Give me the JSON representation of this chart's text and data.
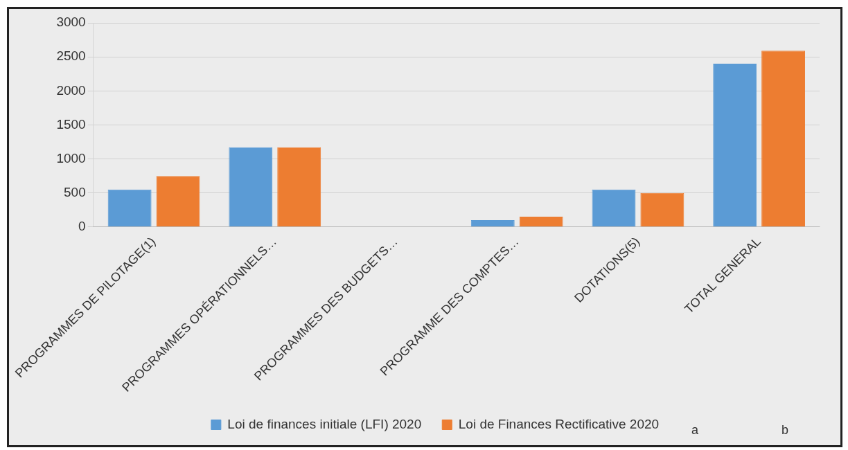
{
  "chart_data": {
    "type": "bar",
    "categories": [
      "PROGRAMMES DE PILOTAGE(1)",
      "PROGRAMMES OPÉRATIONNELS…",
      "PROGRAMMES DES BUDGETS…",
      "PROGRAMME DES COMPTES…",
      "DOTATIONS(5)",
      "TOTAL GENERAL"
    ],
    "series": [
      {
        "name": "Loi de finances initiale (LFI) 2020",
        "color": "#5b9bd5",
        "values": [
          550,
          1170,
          null,
          100,
          550,
          2400
        ]
      },
      {
        "name": "Loi de Finances Rectificative 2020",
        "color": "#ed7d31",
        "values": [
          750,
          1170,
          null,
          150,
          500,
          2590
        ]
      }
    ],
    "ylim": [
      0,
      3000
    ],
    "yticks": [
      0,
      500,
      1000,
      1500,
      2000,
      2500,
      3000
    ],
    "grid": "y",
    "legend": "bottom",
    "annotations": [
      "a",
      "b"
    ]
  }
}
